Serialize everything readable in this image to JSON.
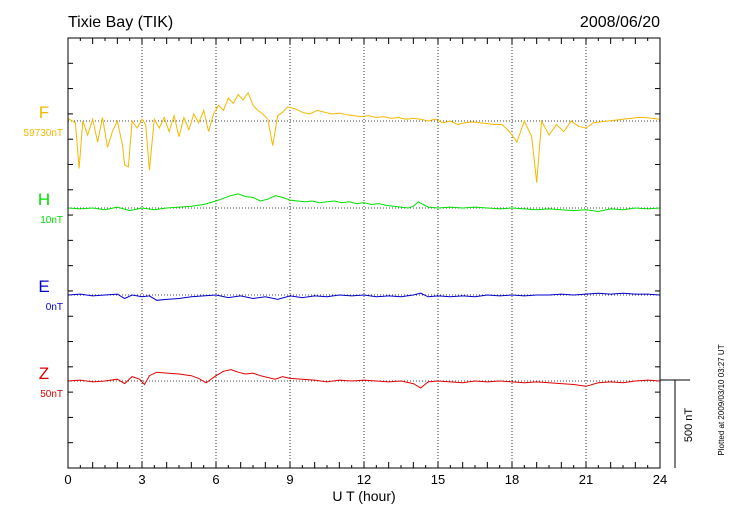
{
  "chart_data": {
    "type": "line",
    "title": "Tixie Bay (TIK)",
    "date": "2008/06/20",
    "xlabel": "U T (hour)",
    "xlim": [
      0,
      24
    ],
    "xticks": [
      "0",
      "3",
      "6",
      "9",
      "12",
      "15",
      "18",
      "21",
      "24"
    ],
    "grid": true,
    "scale_bar_label": "500 nT",
    "scale_bar_nT": 500,
    "plot_note": "Plotted at 2009/03/10 03:27 UT",
    "series": [
      {
        "name": "F",
        "baseline_label": "59730nT",
        "color": "#f5b800",
        "x": [
          0,
          0.3,
          0.45,
          0.6,
          0.8,
          1.0,
          1.2,
          1.4,
          1.6,
          1.8,
          2.0,
          2.2,
          2.3,
          2.45,
          2.6,
          2.8,
          3.0,
          3.15,
          3.3,
          3.5,
          3.7,
          3.9,
          4.1,
          4.3,
          4.5,
          4.7,
          4.9,
          5.1,
          5.3,
          5.5,
          5.7,
          5.9,
          6.1,
          6.3,
          6.5,
          6.7,
          6.9,
          7.1,
          7.3,
          7.5,
          7.7,
          7.9,
          8.1,
          8.3,
          8.5,
          8.7,
          8.9,
          9.2,
          9.5,
          9.8,
          10.1,
          10.4,
          10.7,
          11.0,
          11.3,
          11.6,
          11.9,
          12.2,
          12.5,
          12.8,
          13.1,
          13.4,
          13.7,
          14.0,
          14.3,
          14.6,
          14.9,
          15.2,
          15.5,
          15.8,
          16.1,
          16.4,
          16.7,
          17.0,
          17.3,
          17.6,
          17.9,
          18.2,
          18.5,
          18.8,
          19.0,
          19.2,
          19.5,
          19.8,
          20.1,
          20.4,
          20.7,
          21.0,
          21.3,
          21.6,
          21.9,
          22.2,
          22.5,
          22.8,
          23.1,
          23.4,
          23.7,
          24.0
        ],
        "y": [
          15,
          -10,
          -270,
          0,
          -80,
          10,
          -120,
          20,
          -150,
          -60,
          0,
          -130,
          -250,
          -260,
          0,
          -40,
          10,
          -20,
          -280,
          10,
          -40,
          20,
          -60,
          30,
          -90,
          20,
          -50,
          40,
          -10,
          60,
          -60,
          40,
          90,
          60,
          130,
          100,
          150,
          120,
          160,
          90,
          60,
          40,
          10,
          -140,
          30,
          50,
          80,
          70,
          50,
          40,
          60,
          50,
          40,
          45,
          35,
          30,
          25,
          30,
          20,
          25,
          15,
          20,
          10,
          15,
          10,
          0,
          10,
          -10,
          0,
          -20,
          -10,
          -5,
          -10,
          -15,
          -20,
          -20,
          -60,
          -120,
          0,
          -90,
          -350,
          0,
          -80,
          -20,
          -60,
          0,
          -30,
          -40,
          -10,
          -5,
          0,
          5,
          10,
          15,
          20,
          20,
          15,
          10
        ]
      },
      {
        "name": "H",
        "baseline_label": "10nT",
        "color": "#00e000",
        "x": [
          0,
          0.5,
          1.0,
          1.5,
          2.0,
          2.5,
          3.0,
          3.5,
          4.0,
          4.5,
          5.0,
          5.5,
          6.0,
          6.3,
          6.6,
          6.9,
          7.2,
          7.5,
          7.8,
          8.1,
          8.4,
          8.7,
          9.0,
          9.3,
          9.6,
          9.9,
          10.2,
          10.5,
          10.8,
          11.1,
          11.4,
          11.7,
          12.0,
          12.3,
          12.6,
          12.9,
          13.2,
          13.5,
          13.8,
          14.0,
          14.2,
          14.4,
          14.6,
          15.0,
          15.5,
          16.0,
          16.5,
          17.0,
          17.5,
          18.0,
          18.5,
          19.0,
          19.5,
          20.0,
          20.5,
          21.0,
          21.5,
          22.0,
          22.5,
          23.0,
          23.5,
          24.0
        ],
        "y": [
          0,
          -5,
          0,
          -10,
          5,
          -15,
          0,
          -10,
          0,
          5,
          10,
          20,
          40,
          55,
          70,
          80,
          65,
          60,
          40,
          50,
          70,
          60,
          45,
          40,
          35,
          40,
          30,
          35,
          40,
          30,
          35,
          25,
          30,
          20,
          25,
          15,
          10,
          5,
          0,
          10,
          35,
          20,
          5,
          0,
          5,
          0,
          5,
          0,
          -5,
          0,
          -5,
          -10,
          -5,
          -10,
          -15,
          -10,
          -20,
          -5,
          -10,
          0,
          -5,
          0
        ]
      },
      {
        "name": "E",
        "baseline_label": "0nT",
        "color": "#0000cc",
        "x": [
          0,
          0.5,
          1.0,
          1.5,
          2.0,
          2.3,
          2.6,
          3.0,
          3.3,
          3.6,
          4.0,
          4.5,
          5.0,
          5.5,
          6.0,
          6.5,
          7.0,
          7.5,
          8.0,
          8.5,
          9.0,
          9.5,
          10.0,
          10.5,
          11.0,
          11.5,
          12.0,
          12.5,
          13.0,
          13.5,
          14.0,
          14.3,
          14.6,
          15.0,
          15.5,
          16.0,
          16.5,
          17.0,
          17.5,
          18.0,
          18.5,
          19.0,
          19.5,
          20.0,
          20.5,
          21.0,
          21.5,
          22.0,
          22.5,
          23.0,
          23.5,
          24.0
        ],
        "y": [
          0,
          5,
          -5,
          0,
          5,
          -20,
          0,
          -10,
          -5,
          -30,
          -25,
          -20,
          -10,
          -5,
          0,
          -15,
          -5,
          -20,
          -10,
          -25,
          -5,
          -15,
          -5,
          -10,
          0,
          -5,
          0,
          -10,
          -5,
          -10,
          0,
          10,
          -10,
          -5,
          -10,
          -5,
          -10,
          0,
          -5,
          0,
          -5,
          0,
          0,
          5,
          0,
          5,
          10,
          5,
          10,
          5,
          5,
          0
        ]
      },
      {
        "name": "Z",
        "baseline_label": "50nT",
        "color": "#e00000",
        "x": [
          0,
          0.5,
          1.0,
          1.5,
          2.0,
          2.3,
          2.6,
          2.9,
          3.1,
          3.3,
          3.6,
          4.0,
          4.5,
          5.0,
          5.3,
          5.6,
          6.0,
          6.3,
          6.6,
          6.9,
          7.2,
          7.5,
          7.8,
          8.1,
          8.4,
          8.7,
          9.0,
          9.5,
          10.0,
          10.5,
          11.0,
          11.5,
          12.0,
          12.5,
          13.0,
          13.5,
          14.0,
          14.3,
          14.6,
          15.0,
          15.5,
          16.0,
          16.5,
          17.0,
          17.5,
          18.0,
          18.5,
          19.0,
          19.5,
          20.0,
          20.5,
          21.0,
          21.5,
          22.0,
          22.5,
          23.0,
          23.5,
          24.0
        ],
        "y": [
          0,
          5,
          -5,
          0,
          10,
          -15,
          25,
          10,
          -20,
          30,
          50,
          45,
          40,
          30,
          15,
          -10,
          30,
          55,
          65,
          50,
          40,
          45,
          30,
          20,
          10,
          25,
          15,
          10,
          5,
          -5,
          5,
          0,
          5,
          0,
          -5,
          0,
          -15,
          -40,
          -5,
          0,
          -5,
          -10,
          0,
          -5,
          0,
          -5,
          -10,
          -5,
          -10,
          -15,
          -20,
          -30,
          -10,
          -5,
          -10,
          0,
          5,
          0
        ]
      }
    ]
  }
}
